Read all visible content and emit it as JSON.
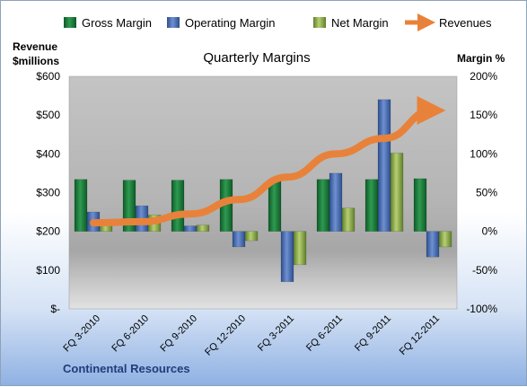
{
  "chart_data": {
    "type": "bar",
    "title": "Quarterly Margins",
    "categories": [
      "FQ 3-2010",
      "FQ 6-2010",
      "FQ 9-2010",
      "FQ 12-2010",
      "FQ 3-2011",
      "FQ 6-2011",
      "FQ 9-2011",
      "FQ 12-2011"
    ],
    "series": [
      {
        "name": "Gross Margin",
        "axis": "right",
        "color": "#1e7a3c",
        "values": [
          67,
          66,
          66,
          67,
          67,
          67,
          67,
          68
        ]
      },
      {
        "name": "Operating Margin",
        "axis": "right",
        "color": "#4a6fb5",
        "values": [
          25,
          33,
          7,
          -20,
          -65,
          75,
          170,
          -33
        ]
      },
      {
        "name": "Net Margin",
        "axis": "right",
        "color": "#8fae4a",
        "values": [
          15,
          21,
          8,
          -12,
          -43,
          30,
          101,
          -20
        ]
      },
      {
        "name": "Revenues",
        "axis": "left",
        "type": "line",
        "color": "#e8823a",
        "values": [
          222,
          225,
          245,
          282,
          340,
          400,
          440,
          512
        ]
      }
    ],
    "left_axis": {
      "title_line1": "Revenue",
      "title_line2": "$millions",
      "ticks": [
        "$600",
        "$500",
        "$400",
        "$300",
        "$200",
        "$100",
        "$-"
      ],
      "range": [
        0,
        600
      ]
    },
    "right_axis": {
      "title": "Margin %",
      "ticks": [
        "200%",
        "150%",
        "100%",
        "50%",
        "0%",
        "-50%",
        "-100%"
      ],
      "range": [
        -100,
        200
      ]
    },
    "legend_position": "top",
    "grid": false
  },
  "footer": {
    "source": "Continental Resources"
  }
}
